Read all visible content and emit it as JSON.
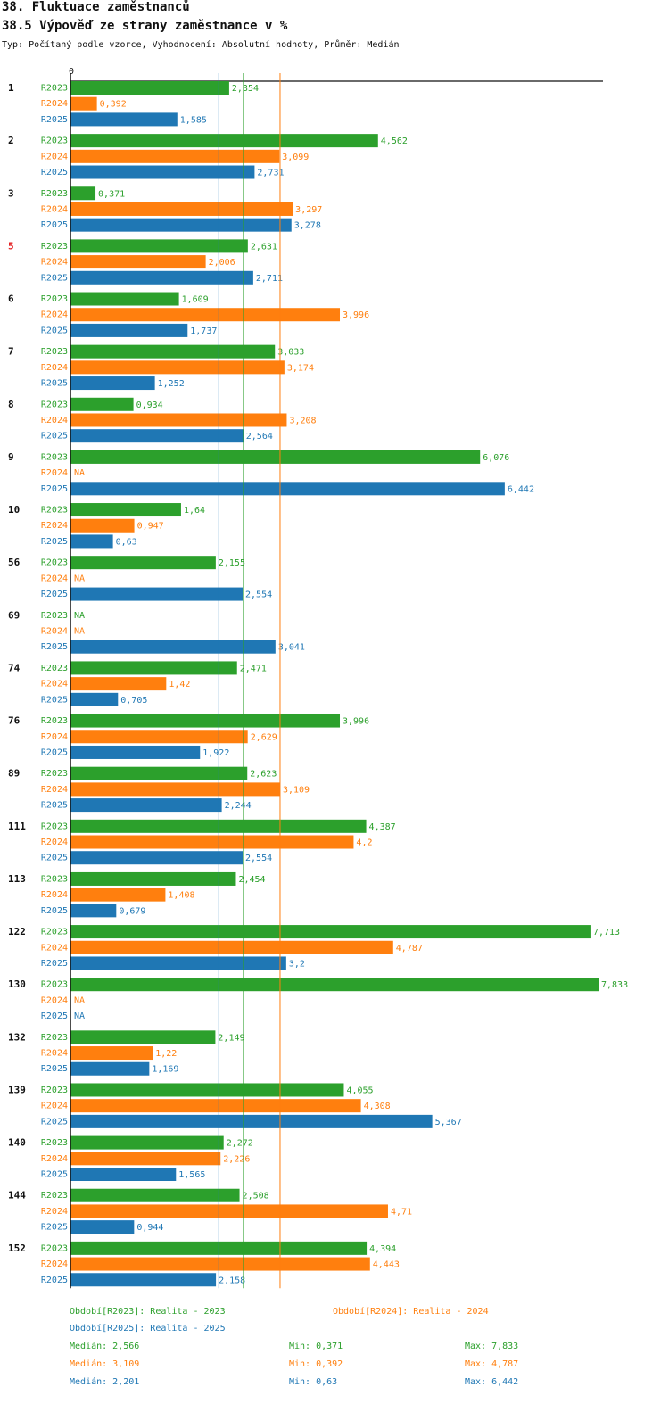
{
  "header": {
    "title": "38. Fluktuace zaměstnanců",
    "subtitle": "38.5 Výpověď ze strany zaměstnance v %",
    "meta": "Typ: Počítaný podle vzorce, Vyhodnocení: Absolutní hodnoty, Průměr: Medián"
  },
  "chart_data": {
    "type": "bar",
    "orientation": "horizontal",
    "axis_zero_label": "0",
    "xlim": [
      0,
      7.833
    ],
    "colors": {
      "R2023": "#2ca02c",
      "R2024": "#ff7f0e",
      "R2025": "#1f77b4",
      "highlight": "#e31a1c",
      "label": "#111111"
    },
    "series": [
      {
        "name": "R2023",
        "values": [
          2.354,
          4.562,
          0.371,
          2.631,
          1.609,
          3.033,
          0.934,
          6.076,
          1.64,
          2.155,
          null,
          2.471,
          3.996,
          2.623,
          4.387,
          2.454,
          7.713,
          7.833,
          2.149,
          4.055,
          2.272,
          2.508,
          4.394
        ]
      },
      {
        "name": "R2024",
        "values": [
          0.392,
          3.099,
          3.297,
          2.006,
          3.996,
          3.174,
          3.208,
          null,
          0.947,
          null,
          null,
          1.42,
          2.629,
          3.109,
          4.2,
          1.408,
          4.787,
          null,
          1.22,
          4.308,
          2.226,
          4.71,
          4.443
        ]
      },
      {
        "name": "R2025",
        "values": [
          1.585,
          2.731,
          3.278,
          2.711,
          1.737,
          1.252,
          2.564,
          6.442,
          0.63,
          2.554,
          3.041,
          0.705,
          1.922,
          2.244,
          2.554,
          0.679,
          3.2,
          null,
          1.169,
          5.367,
          1.565,
          0.944,
          2.158
        ]
      }
    ],
    "categories": [
      {
        "label": "1"
      },
      {
        "label": "2"
      },
      {
        "label": "3"
      },
      {
        "label": "5",
        "highlight": true
      },
      {
        "label": "6"
      },
      {
        "label": "7"
      },
      {
        "label": "8"
      },
      {
        "label": "9"
      },
      {
        "label": "10"
      },
      {
        "label": "56"
      },
      {
        "label": "69"
      },
      {
        "label": "74"
      },
      {
        "label": "76"
      },
      {
        "label": "89"
      },
      {
        "label": "111"
      },
      {
        "label": "113"
      },
      {
        "label": "122"
      },
      {
        "label": "130"
      },
      {
        "label": "132"
      },
      {
        "label": "139"
      },
      {
        "label": "140"
      },
      {
        "label": "144"
      },
      {
        "label": "152"
      }
    ],
    "na_label": "NA",
    "median_lines": [
      {
        "series": "R2023",
        "value": 2.566
      },
      {
        "series": "R2024",
        "value": 3.109
      },
      {
        "series": "R2025",
        "value": 2.201
      }
    ]
  },
  "legend": {
    "periods": [
      {
        "series": "R2023",
        "text": "Období[R2023]: Realita - 2023"
      },
      {
        "series": "R2024",
        "text": "Období[R2024]: Realita - 2024"
      },
      {
        "series": "R2025",
        "text": "Období[R2025]: Realita - 2025"
      }
    ],
    "stats": [
      {
        "series": "R2023",
        "median": "Medián: 2,566",
        "min": "Min: 0,371",
        "max": "Max: 7,833"
      },
      {
        "series": "R2024",
        "median": "Medián: 3,109",
        "min": "Min: 0,392",
        "max": "Max: 4,787"
      },
      {
        "series": "R2025",
        "median": "Medián: 2,201",
        "min": "Min: 0,63",
        "max": "Max: 6,442"
      }
    ]
  }
}
